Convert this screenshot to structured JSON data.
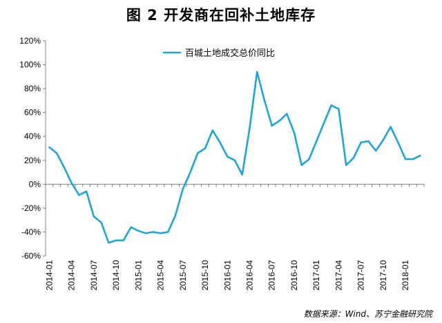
{
  "title": "图 2  开发商在回补土地库存",
  "source": "数据来源：Wind、苏宁金融研究院",
  "colors": {
    "line": "#1aa6dc",
    "axis": "#808080",
    "text": "#000000"
  },
  "chart_data": {
    "type": "line",
    "title": "图 2  开发商在回补土地库存",
    "xlabel": "",
    "ylabel": "",
    "ylim": [
      -0.6,
      1.2
    ],
    "yticks": [
      "120%",
      "100%",
      "80%",
      "60%",
      "40%",
      "20%",
      "0%",
      "-20%",
      "-40%",
      "-60%"
    ],
    "x_tick_labels": [
      "2014-01",
      "2014-04",
      "2014-07",
      "2014-10",
      "2015-01",
      "2015-04",
      "2015-07",
      "2015-10",
      "2016-01",
      "2016-04",
      "2016-07",
      "2016-10",
      "2017-01",
      "2017-04",
      "2017-07",
      "2017-10",
      "2018-01"
    ],
    "legend_position": "top",
    "grid": false,
    "x": [
      "2014-01",
      "2014-02",
      "2014-03",
      "2014-04",
      "2014-05",
      "2014-06",
      "2014-07",
      "2014-08",
      "2014-09",
      "2014-10",
      "2014-11",
      "2014-12",
      "2015-01",
      "2015-02",
      "2015-03",
      "2015-04",
      "2015-05",
      "2015-06",
      "2015-07",
      "2015-08",
      "2015-09",
      "2015-10",
      "2015-11",
      "2015-12",
      "2016-01",
      "2016-02",
      "2016-03",
      "2016-04",
      "2016-05",
      "2016-06",
      "2016-07",
      "2016-08",
      "2016-09",
      "2016-10",
      "2016-11",
      "2016-12",
      "2017-01",
      "2017-02",
      "2017-03",
      "2017-04",
      "2017-05",
      "2017-06",
      "2017-07",
      "2017-08",
      "2017-09",
      "2017-10",
      "2017-11",
      "2017-12",
      "2018-01",
      "2018-02",
      "2018-03"
    ],
    "series": [
      {
        "name": "百城土地成交总价同比",
        "values": [
          0.31,
          0.26,
          0.14,
          0.01,
          -0.09,
          -0.06,
          -0.27,
          -0.32,
          -0.49,
          -0.47,
          -0.47,
          -0.36,
          -0.39,
          -0.41,
          -0.4,
          -0.41,
          -0.4,
          -0.26,
          -0.04,
          0.1,
          0.26,
          0.3,
          0.45,
          0.35,
          0.23,
          0.2,
          0.08,
          0.47,
          0.94,
          0.7,
          0.49,
          0.53,
          0.59,
          0.43,
          0.16,
          0.21,
          0.36,
          0.51,
          0.66,
          0.63,
          0.16,
          0.22,
          0.35,
          0.36,
          0.28,
          0.37,
          0.48,
          0.35,
          0.21,
          0.21,
          0.24
        ]
      }
    ]
  }
}
